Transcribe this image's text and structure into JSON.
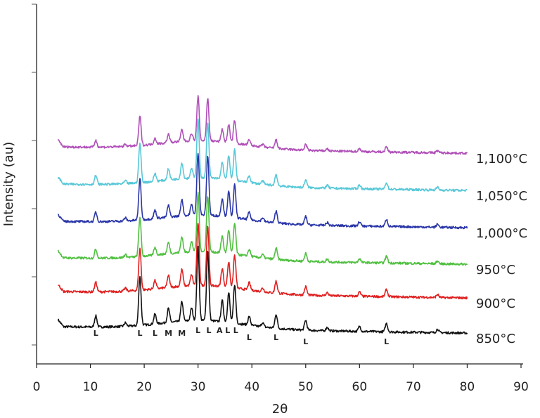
{
  "chart_data": {
    "type": "line",
    "xlabel": "2θ",
    "ylabel": "Intensity (au)",
    "xlim": [
      0,
      90
    ],
    "x_ticks": [
      "0",
      "10",
      "20",
      "30",
      "40",
      "50",
      "60",
      "70",
      "80",
      "90"
    ],
    "grid": false,
    "legend": "labels at right end of each trace",
    "peak_labels": [
      {
        "label": "L",
        "x": 11
      },
      {
        "label": "L",
        "x": 19.2
      },
      {
        "label": "L",
        "x": 22
      },
      {
        "label": "M",
        "x": 24.5
      },
      {
        "label": "M",
        "x": 27
      },
      {
        "label": "L",
        "x": 30
      },
      {
        "label": "L",
        "x": 32
      },
      {
        "label": "A",
        "x": 34
      },
      {
        "label": "L",
        "x": 35.5
      },
      {
        "label": "L",
        "x": 37
      },
      {
        "label": "L",
        "x": 39.5
      },
      {
        "label": "L",
        "x": 44.5
      },
      {
        "label": "L",
        "x": 50
      },
      {
        "label": "L",
        "x": 65
      }
    ],
    "peaks": [
      {
        "x": 11,
        "h": 16
      },
      {
        "x": 16.5,
        "h": 5
      },
      {
        "x": 19.2,
        "h": 70
      },
      {
        "x": 22,
        "h": 14
      },
      {
        "x": 24.5,
        "h": 20
      },
      {
        "x": 27,
        "h": 28
      },
      {
        "x": 28.8,
        "h": 18
      },
      {
        "x": 30,
        "h": 105
      },
      {
        "x": 31.8,
        "h": 100
      },
      {
        "x": 34.5,
        "h": 30
      },
      {
        "x": 35.7,
        "h": 42
      },
      {
        "x": 36.8,
        "h": 55
      },
      {
        "x": 39.5,
        "h": 12
      },
      {
        "x": 42,
        "h": 6
      },
      {
        "x": 44.5,
        "h": 20
      },
      {
        "x": 50,
        "h": 14
      },
      {
        "x": 54,
        "h": 5
      },
      {
        "x": 60,
        "h": 7
      },
      {
        "x": 65,
        "h": 12
      },
      {
        "x": 74.5,
        "h": 5
      }
    ],
    "series": [
      {
        "name": "850°C",
        "color": "#111111",
        "offset": 0,
        "scale": 1.0
      },
      {
        "name": "900°C",
        "color": "#e02020",
        "offset": 50,
        "scale": 0.85
      },
      {
        "name": "950°C",
        "color": "#50c040",
        "offset": 98,
        "scale": 0.8
      },
      {
        "name": "1,000°C",
        "color": "#2a36a8",
        "offset": 150,
        "scale": 0.85
      },
      {
        "name": "1,050°C",
        "color": "#58c8d8",
        "offset": 203,
        "scale": 0.8
      },
      {
        "name": "1,100°C",
        "color": "#b050b8",
        "offset": 256,
        "scale": 0.6
      }
    ]
  }
}
